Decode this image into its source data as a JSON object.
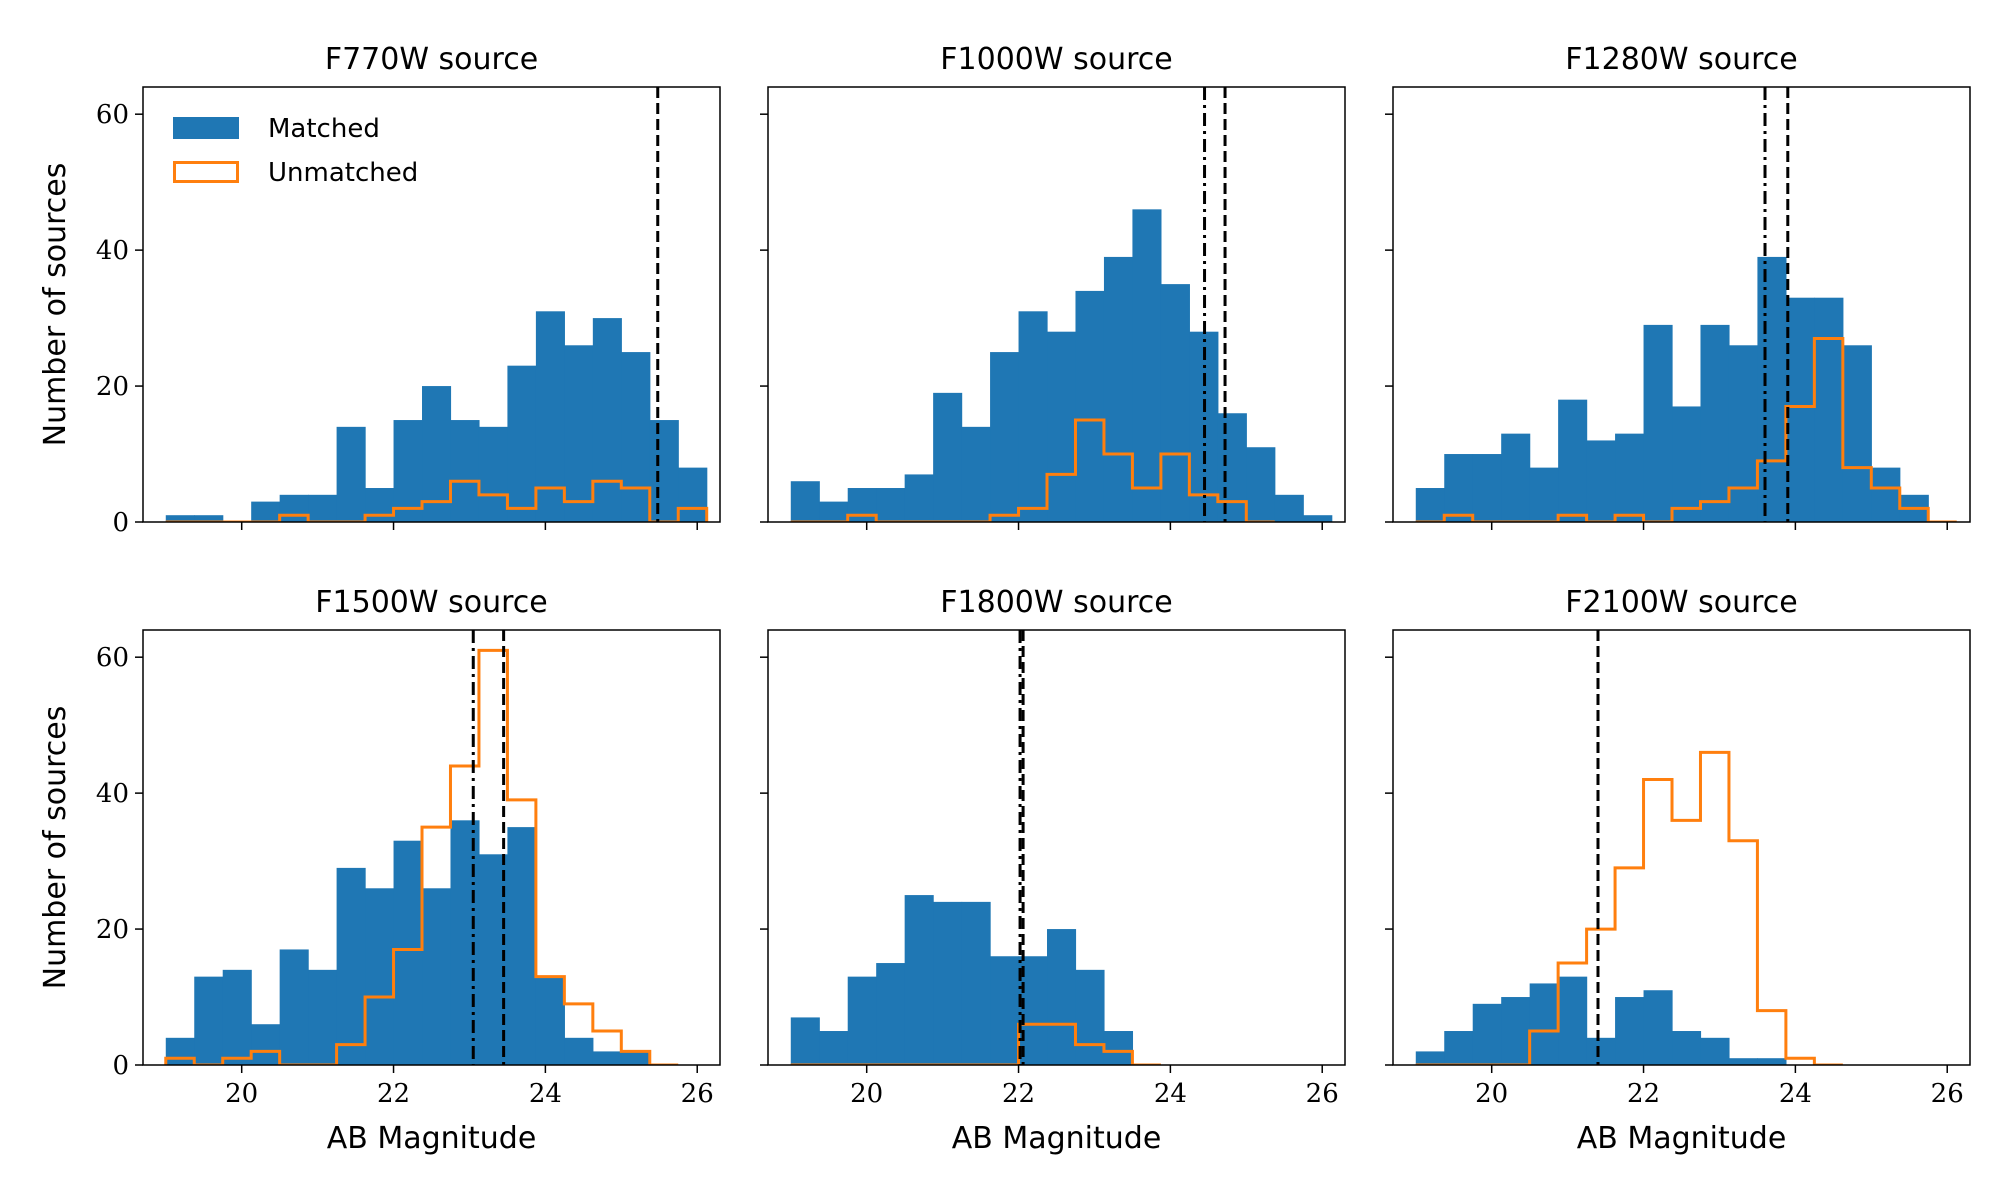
{
  "colors": {
    "matched": "#1f77b4",
    "unmatched": "#ff7f0e",
    "line": "#000000"
  },
  "legend": {
    "matched_label": "Matched",
    "unmatched_label": "Unmatched",
    "placement": "top-left"
  },
  "chart_data": [
    {
      "type": "bar",
      "title": "F770W source",
      "xlabel": "",
      "ylabel": "Number of sources",
      "xlim": [
        18.7,
        26.3
      ],
      "ylim": [
        0,
        64
      ],
      "xticks": [
        20,
        22,
        24,
        26
      ],
      "yticks": [
        0,
        20,
        40,
        60
      ],
      "bin_start": 19.0,
      "bin_width": 0.375,
      "series": [
        {
          "name": "Matched",
          "style": "filled",
          "values": [
            1,
            1,
            0,
            3,
            4,
            4,
            14,
            5,
            15,
            20,
            15,
            14,
            23,
            31,
            26,
            30,
            25,
            15,
            8
          ]
        },
        {
          "name": "Unmatched",
          "style": "step",
          "values": [
            0,
            0,
            0,
            0,
            1,
            0,
            0,
            1,
            2,
            3,
            6,
            4,
            2,
            5,
            3,
            6,
            5,
            0,
            2
          ]
        }
      ],
      "vlines": [
        {
          "x": 25.48,
          "style": "dashed"
        }
      ]
    },
    {
      "type": "bar",
      "title": "F1000W source",
      "xlabel": "",
      "ylabel": "",
      "xlim": [
        18.7,
        26.3
      ],
      "ylim": [
        0,
        64
      ],
      "xticks": [
        20,
        22,
        24,
        26
      ],
      "yticks": [
        0,
        20,
        40,
        60
      ],
      "bin_start": 19.0,
      "bin_width": 0.375,
      "series": [
        {
          "name": "Matched",
          "style": "filled",
          "values": [
            6,
            3,
            5,
            5,
            7,
            19,
            14,
            25,
            31,
            28,
            34,
            39,
            46,
            35,
            28,
            16,
            11,
            4,
            1
          ]
        },
        {
          "name": "Unmatched",
          "style": "step",
          "values": [
            0,
            0,
            1,
            0,
            0,
            0,
            0,
            1,
            2,
            7,
            15,
            10,
            5,
            10,
            4,
            3,
            0,
            0,
            0
          ]
        }
      ],
      "vlines": [
        {
          "x": 24.45,
          "style": "dashdot"
        },
        {
          "x": 24.72,
          "style": "dashed"
        }
      ]
    },
    {
      "type": "bar",
      "title": "F1280W source",
      "xlabel": "",
      "ylabel": "",
      "xlim": [
        18.7,
        26.3
      ],
      "ylim": [
        0,
        64
      ],
      "xticks": [
        20,
        22,
        24,
        26
      ],
      "yticks": [
        0,
        20,
        40,
        60
      ],
      "bin_start": 19.0,
      "bin_width": 0.375,
      "series": [
        {
          "name": "Matched",
          "style": "filled",
          "values": [
            5,
            10,
            10,
            13,
            8,
            18,
            12,
            13,
            29,
            17,
            29,
            26,
            39,
            33,
            33,
            26,
            8,
            4,
            0
          ]
        },
        {
          "name": "Unmatched",
          "style": "step",
          "values": [
            0,
            1,
            0,
            0,
            0,
            1,
            0,
            1,
            0,
            2,
            3,
            5,
            9,
            17,
            27,
            8,
            5,
            2,
            0
          ]
        }
      ],
      "vlines": [
        {
          "x": 23.6,
          "style": "dashdot"
        },
        {
          "x": 23.9,
          "style": "dashed"
        }
      ]
    },
    {
      "type": "bar",
      "title": "F1500W source",
      "xlabel": "AB Magnitude",
      "ylabel": "Number of sources",
      "xlim": [
        18.7,
        26.3
      ],
      "ylim": [
        0,
        64
      ],
      "xticks": [
        20,
        22,
        24,
        26
      ],
      "yticks": [
        0,
        20,
        40,
        60
      ],
      "bin_start": 19.0,
      "bin_width": 0.375,
      "series": [
        {
          "name": "Matched",
          "style": "filled",
          "values": [
            4,
            13,
            14,
            6,
            17,
            14,
            29,
            26,
            33,
            26,
            36,
            31,
            35,
            13,
            4,
            2,
            2,
            0,
            0
          ]
        },
        {
          "name": "Unmatched",
          "style": "step",
          "values": [
            1,
            0,
            1,
            2,
            0,
            0,
            3,
            10,
            17,
            35,
            44,
            61,
            39,
            13,
            9,
            5,
            2,
            0,
            0
          ]
        }
      ],
      "vlines": [
        {
          "x": 23.05,
          "style": "dashdot"
        },
        {
          "x": 23.45,
          "style": "dashed"
        }
      ]
    },
    {
      "type": "bar",
      "title": "F1800W source",
      "xlabel": "AB Magnitude",
      "ylabel": "",
      "xlim": [
        18.7,
        26.3
      ],
      "ylim": [
        0,
        64
      ],
      "xticks": [
        20,
        22,
        24,
        26
      ],
      "yticks": [
        0,
        20,
        40,
        60
      ],
      "bin_start": 19.0,
      "bin_width": 0.375,
      "series": [
        {
          "name": "Matched",
          "style": "filled",
          "values": [
            7,
            5,
            13,
            15,
            25,
            24,
            24,
            16,
            16,
            20,
            14,
            5,
            0,
            0,
            0,
            0,
            0,
            0,
            0
          ]
        },
        {
          "name": "Unmatched",
          "style": "step",
          "values": [
            0,
            0,
            0,
            0,
            0,
            0,
            0,
            0,
            6,
            6,
            3,
            2,
            0,
            0,
            0,
            0,
            0,
            0,
            0
          ]
        }
      ],
      "vlines": [
        {
          "x": 22.02,
          "style": "dashdot"
        },
        {
          "x": 22.06,
          "style": "dashed"
        }
      ]
    },
    {
      "type": "bar",
      "title": "F2100W source",
      "xlabel": "AB Magnitude",
      "ylabel": "",
      "xlim": [
        18.7,
        26.3
      ],
      "ylim": [
        0,
        64
      ],
      "xticks": [
        20,
        22,
        24,
        26
      ],
      "yticks": [
        0,
        20,
        40,
        60
      ],
      "bin_start": 19.0,
      "bin_width": 0.375,
      "series": [
        {
          "name": "Matched",
          "style": "filled",
          "values": [
            2,
            5,
            9,
            10,
            12,
            13,
            4,
            10,
            11,
            5,
            4,
            1,
            1,
            0,
            0,
            0,
            0,
            0,
            0
          ]
        },
        {
          "name": "Unmatched",
          "style": "step",
          "values": [
            0,
            0,
            0,
            0,
            5,
            15,
            20,
            29,
            42,
            36,
            46,
            33,
            8,
            1,
            0,
            0,
            0,
            0,
            0
          ]
        }
      ],
      "vlines": [
        {
          "x": 21.4,
          "style": "dashed"
        }
      ]
    }
  ]
}
